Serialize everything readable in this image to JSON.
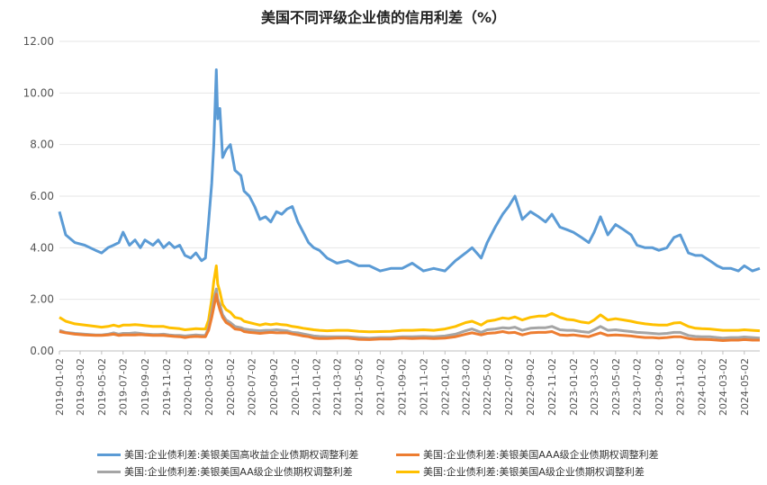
{
  "chart_data": {
    "type": "line",
    "title": "美国不同评级企业债的信用利差（%）",
    "xlabel": "",
    "ylabel": "",
    "ylim": [
      0,
      12
    ],
    "yticks": [
      "0.00",
      "2.00",
      "4.00",
      "6.00",
      "8.00",
      "10.00",
      "12.00"
    ],
    "grid": true,
    "legend_position": "bottom",
    "x_tick_labels": [
      "2019-01-02",
      "2019-03-02",
      "2019-05-02",
      "2019-07-02",
      "2019-09-02",
      "2019-11-02",
      "2020-01-02",
      "2020-03-02",
      "2020-05-02",
      "2020-07-02",
      "2020-09-02",
      "2020-11-02",
      "2021-01-02",
      "2021-03-02",
      "2021-05-02",
      "2021-07-02",
      "2021-09-02",
      "2021-11-02",
      "2022-01-02",
      "2022-03-02",
      "2022-05-02",
      "2022-07-02",
      "2022-09-02",
      "2022-11-02",
      "2023-01-02",
      "2023-03-02",
      "2023-05-02",
      "2023-07-02",
      "2023-09-02",
      "2023-11-02",
      "2024-01-02",
      "2024-03-02",
      "2024-05-02"
    ],
    "x": [
      "2019-01-02",
      "2019-01-20",
      "2019-02-15",
      "2019-03-15",
      "2019-04-15",
      "2019-05-02",
      "2019-05-20",
      "2019-06-05",
      "2019-06-20",
      "2019-07-02",
      "2019-07-20",
      "2019-08-05",
      "2019-08-20",
      "2019-09-02",
      "2019-09-25",
      "2019-10-10",
      "2019-10-25",
      "2019-11-10",
      "2019-11-25",
      "2019-12-10",
      "2019-12-25",
      "2020-01-10",
      "2020-01-25",
      "2020-02-10",
      "2020-02-21",
      "2020-03-01",
      "2020-03-10",
      "2020-03-16",
      "2020-03-23",
      "2020-03-27",
      "2020-04-02",
      "2020-04-10",
      "2020-04-20",
      "2020-05-02",
      "2020-05-15",
      "2020-06-01",
      "2020-06-10",
      "2020-06-25",
      "2020-07-10",
      "2020-07-25",
      "2020-08-10",
      "2020-08-25",
      "2020-09-10",
      "2020-09-25",
      "2020-10-10",
      "2020-10-25",
      "2020-11-10",
      "2020-11-25",
      "2020-12-10",
      "2020-12-25",
      "2021-01-10",
      "2021-02-01",
      "2021-03-01",
      "2021-04-01",
      "2021-05-02",
      "2021-06-01",
      "2021-07-02",
      "2021-08-01",
      "2021-09-02",
      "2021-10-01",
      "2021-11-02",
      "2021-12-01",
      "2022-01-02",
      "2022-02-01",
      "2022-03-02",
      "2022-03-20",
      "2022-04-15",
      "2022-05-02",
      "2022-05-25",
      "2022-06-15",
      "2022-07-02",
      "2022-07-20",
      "2022-08-10",
      "2022-09-02",
      "2022-09-25",
      "2022-10-15",
      "2022-11-02",
      "2022-11-25",
      "2022-12-15",
      "2023-01-02",
      "2023-01-25",
      "2023-02-15",
      "2023-03-02",
      "2023-03-20",
      "2023-04-10",
      "2023-05-02",
      "2023-05-25",
      "2023-06-15",
      "2023-07-02",
      "2023-07-25",
      "2023-08-15",
      "2023-09-02",
      "2023-09-25",
      "2023-10-15",
      "2023-11-02",
      "2023-11-25",
      "2023-12-15",
      "2024-01-02",
      "2024-01-25",
      "2024-02-15",
      "2024-03-02",
      "2024-03-25",
      "2024-04-15",
      "2024-05-02",
      "2024-05-25",
      "2024-06-15"
    ],
    "series": [
      {
        "name": "美国:企业债利差:美银美国高收益企业债期权调整利差",
        "color": "#5b9bd5",
        "values": [
          5.4,
          4.5,
          4.2,
          4.1,
          3.9,
          3.8,
          4.0,
          4.1,
          4.2,
          4.6,
          4.1,
          4.3,
          4.0,
          4.3,
          4.1,
          4.3,
          4.0,
          4.2,
          4.0,
          4.1,
          3.7,
          3.6,
          3.8,
          3.5,
          3.6,
          5.0,
          6.5,
          8.0,
          10.9,
          9.0,
          9.4,
          7.5,
          7.8,
          8.0,
          7.0,
          6.8,
          6.2,
          6.0,
          5.6,
          5.1,
          5.2,
          5.0,
          5.4,
          5.3,
          5.5,
          5.6,
          5.0,
          4.6,
          4.2,
          4.0,
          3.9,
          3.6,
          3.4,
          3.5,
          3.3,
          3.3,
          3.1,
          3.2,
          3.2,
          3.4,
          3.1,
          3.2,
          3.1,
          3.5,
          3.8,
          4.0,
          3.6,
          4.2,
          4.8,
          5.3,
          5.6,
          6.0,
          5.1,
          5.4,
          5.2,
          5.0,
          5.3,
          4.8,
          4.7,
          4.6,
          4.4,
          4.2,
          4.6,
          5.2,
          4.5,
          4.9,
          4.7,
          4.5,
          4.1,
          4.0,
          4.0,
          3.9,
          4.0,
          4.4,
          4.5,
          3.8,
          3.7,
          3.7,
          3.5,
          3.3,
          3.2,
          3.2,
          3.1,
          3.3,
          3.1,
          3.2
        ]
      },
      {
        "name": "美国:企业债利差:美银美国AAA级企业债期权调整利差",
        "color": "#ed7d31",
        "values": [
          0.75,
          0.7,
          0.65,
          0.62,
          0.6,
          0.6,
          0.62,
          0.65,
          0.6,
          0.62,
          0.62,
          0.62,
          0.63,
          0.62,
          0.6,
          0.6,
          0.6,
          0.58,
          0.56,
          0.55,
          0.52,
          0.55,
          0.56,
          0.55,
          0.55,
          0.8,
          1.3,
          1.7,
          2.2,
          1.9,
          1.6,
          1.3,
          1.1,
          1.0,
          0.85,
          0.82,
          0.75,
          0.72,
          0.7,
          0.68,
          0.7,
          0.72,
          0.7,
          0.7,
          0.7,
          0.66,
          0.62,
          0.58,
          0.55,
          0.5,
          0.48,
          0.48,
          0.5,
          0.5,
          0.45,
          0.44,
          0.46,
          0.46,
          0.5,
          0.48,
          0.5,
          0.48,
          0.5,
          0.55,
          0.65,
          0.7,
          0.62,
          0.68,
          0.7,
          0.75,
          0.7,
          0.72,
          0.62,
          0.7,
          0.72,
          0.72,
          0.75,
          0.62,
          0.6,
          0.62,
          0.58,
          0.55,
          0.62,
          0.7,
          0.6,
          0.62,
          0.6,
          0.58,
          0.55,
          0.52,
          0.52,
          0.5,
          0.52,
          0.55,
          0.55,
          0.48,
          0.45,
          0.45,
          0.44,
          0.42,
          0.4,
          0.42,
          0.42,
          0.44,
          0.42,
          0.42
        ]
      },
      {
        "name": "美国:企业债利差:美银美国AA级企业债期权调整利差",
        "color": "#a5a5a5",
        "values": [
          0.8,
          0.72,
          0.68,
          0.65,
          0.62,
          0.62,
          0.65,
          0.7,
          0.65,
          0.68,
          0.68,
          0.7,
          0.68,
          0.66,
          0.64,
          0.64,
          0.65,
          0.62,
          0.6,
          0.6,
          0.58,
          0.6,
          0.62,
          0.6,
          0.6,
          0.9,
          1.5,
          2.0,
          2.4,
          2.0,
          1.8,
          1.4,
          1.2,
          1.1,
          0.95,
          0.9,
          0.85,
          0.82,
          0.8,
          0.78,
          0.8,
          0.8,
          0.82,
          0.8,
          0.78,
          0.72,
          0.7,
          0.66,
          0.62,
          0.58,
          0.56,
          0.55,
          0.55,
          0.55,
          0.52,
          0.5,
          0.52,
          0.52,
          0.55,
          0.55,
          0.56,
          0.55,
          0.58,
          0.65,
          0.78,
          0.85,
          0.72,
          0.82,
          0.85,
          0.9,
          0.88,
          0.92,
          0.8,
          0.88,
          0.9,
          0.9,
          0.95,
          0.82,
          0.8,
          0.8,
          0.75,
          0.72,
          0.82,
          0.95,
          0.8,
          0.82,
          0.78,
          0.75,
          0.72,
          0.7,
          0.68,
          0.66,
          0.68,
          0.72,
          0.72,
          0.6,
          0.56,
          0.55,
          0.55,
          0.52,
          0.5,
          0.52,
          0.52,
          0.54,
          0.52,
          0.5
        ]
      },
      {
        "name": "美国:企业债利差:美银美国A级企业债期权调整利差",
        "color": "#ffc000",
        "values": [
          1.3,
          1.15,
          1.05,
          1.0,
          0.95,
          0.92,
          0.95,
          1.0,
          0.95,
          1.0,
          1.0,
          1.02,
          1.0,
          0.98,
          0.95,
          0.95,
          0.95,
          0.9,
          0.88,
          0.86,
          0.82,
          0.84,
          0.86,
          0.85,
          0.85,
          1.2,
          2.0,
          2.7,
          3.3,
          2.6,
          2.3,
          1.8,
          1.6,
          1.5,
          1.3,
          1.25,
          1.15,
          1.1,
          1.05,
          1.0,
          1.05,
          1.02,
          1.05,
          1.02,
          1.0,
          0.95,
          0.92,
          0.88,
          0.85,
          0.82,
          0.8,
          0.78,
          0.8,
          0.8,
          0.76,
          0.74,
          0.75,
          0.76,
          0.8,
          0.8,
          0.82,
          0.8,
          0.85,
          0.95,
          1.1,
          1.15,
          1.0,
          1.15,
          1.2,
          1.28,
          1.25,
          1.32,
          1.2,
          1.3,
          1.35,
          1.35,
          1.45,
          1.3,
          1.22,
          1.2,
          1.12,
          1.08,
          1.2,
          1.4,
          1.2,
          1.25,
          1.2,
          1.15,
          1.1,
          1.05,
          1.02,
          1.0,
          1.0,
          1.08,
          1.1,
          0.95,
          0.88,
          0.86,
          0.85,
          0.82,
          0.8,
          0.8,
          0.8,
          0.82,
          0.8,
          0.78
        ]
      }
    ]
  }
}
